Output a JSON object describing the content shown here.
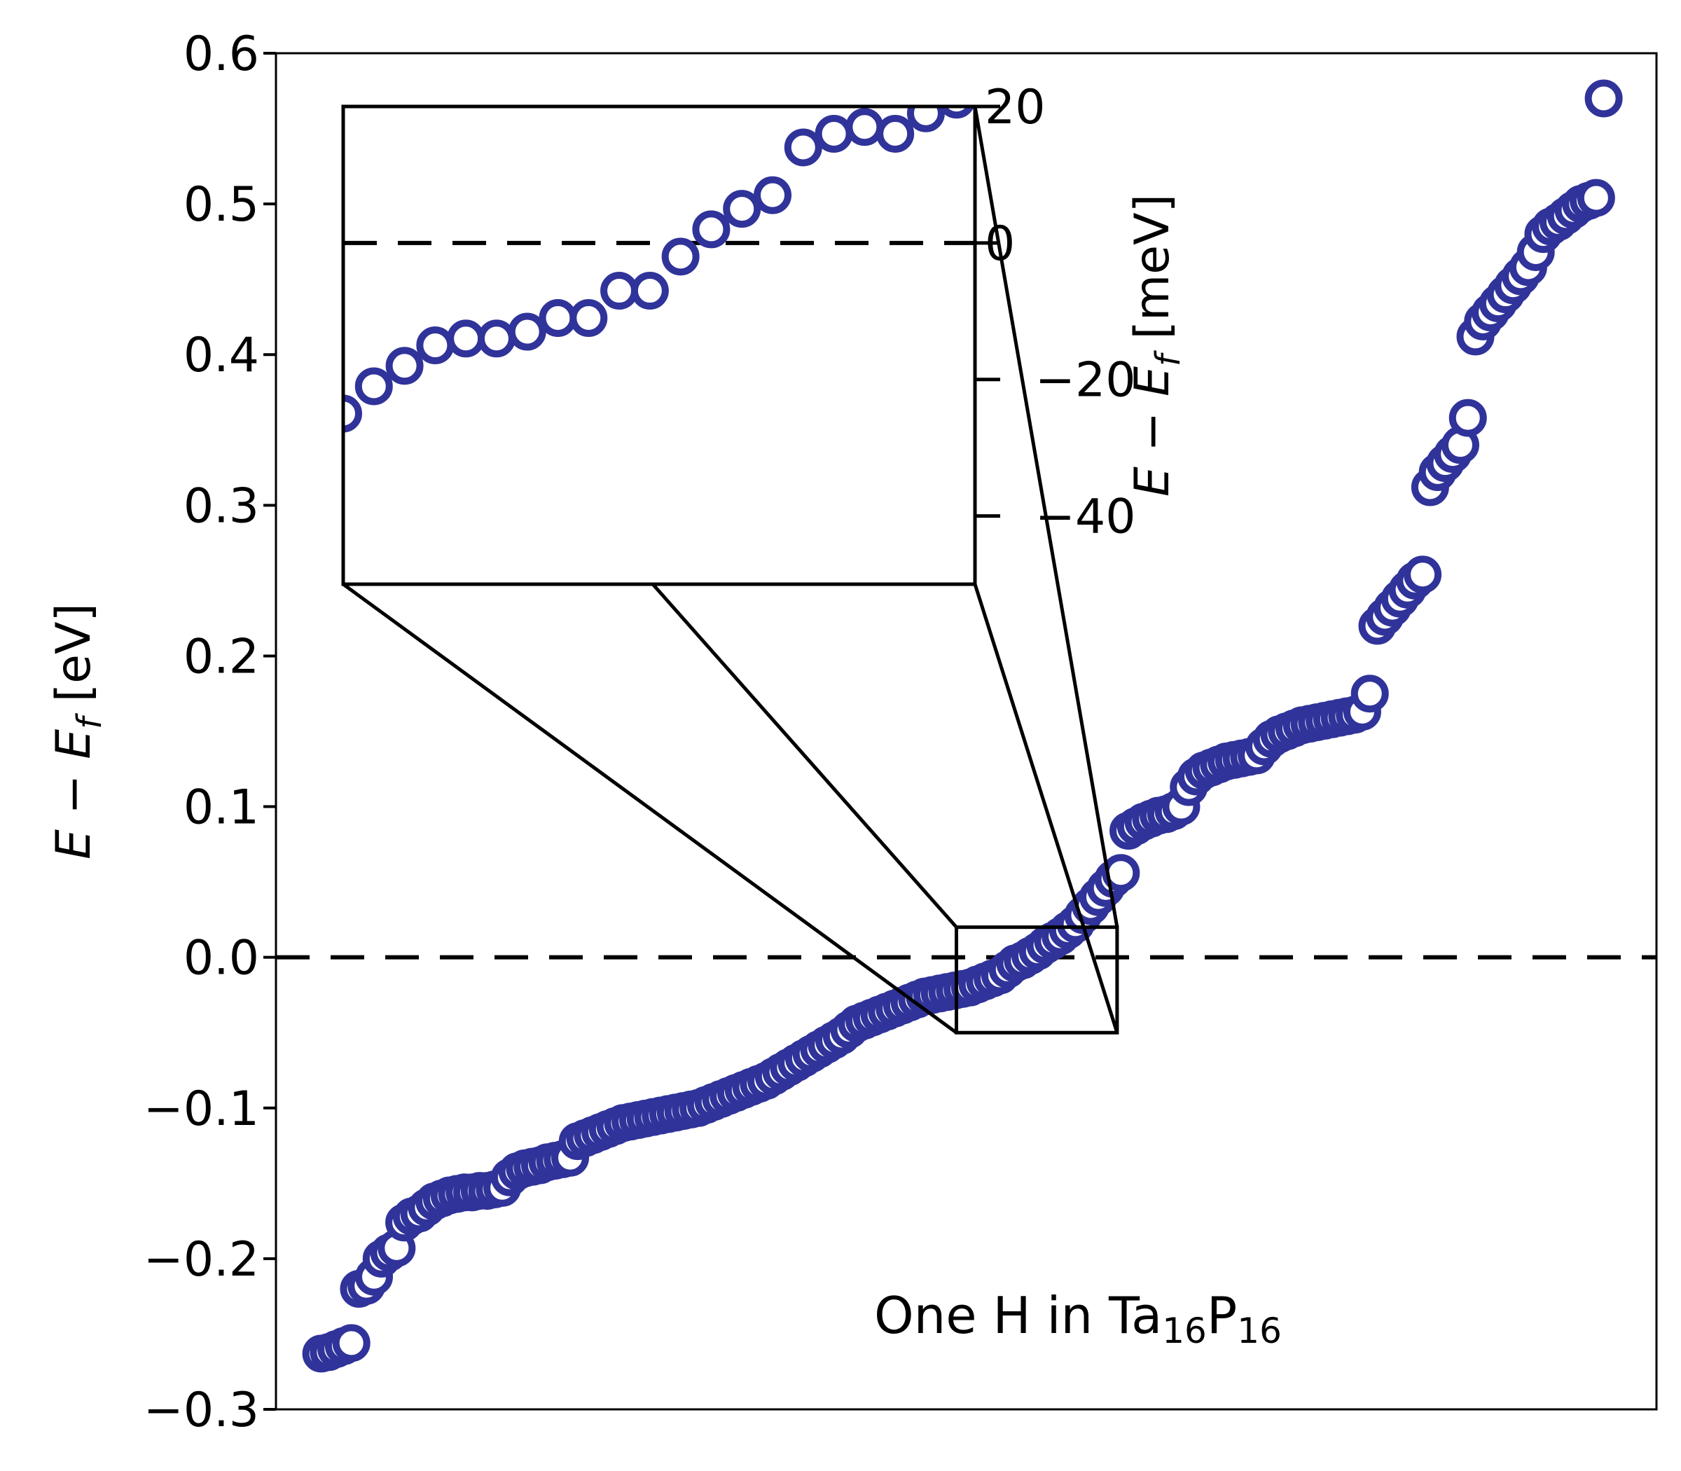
{
  "chart_data": {
    "type": "scatter",
    "title": "",
    "xlabel": "",
    "ylabel": {
      "prefix": "E − E",
      "sub": "f",
      "unit": " [eV]"
    },
    "ylim": [
      -0.3,
      0.6
    ],
    "yticks": [
      -0.3,
      -0.2,
      -0.1,
      0.0,
      0.1,
      0.2,
      0.3,
      0.4,
      0.5,
      0.6
    ],
    "ytick_labels": [
      "−0.3",
      "−0.2",
      "−0.1",
      "0.0",
      "0.1",
      "0.2",
      "0.3",
      "0.4",
      "0.5",
      "0.6"
    ],
    "reference_line": {
      "y": 0.0,
      "style": "dashed"
    },
    "grid": false,
    "marker": {
      "shape": "open-circle",
      "color": "#303399"
    },
    "annotation": {
      "main": "One H in Ta",
      "sub1": "16",
      "mid": "P",
      "sub2": "16",
      "placement": "bottom-right"
    },
    "series": [
      {
        "y": [
          -0.263,
          -0.262,
          -0.26,
          -0.258,
          -0.256,
          -0.22,
          -0.218,
          -0.212,
          -0.2,
          -0.196,
          -0.193,
          -0.176,
          -0.172,
          -0.17,
          -0.166,
          -0.162,
          -0.16,
          -0.158,
          -0.157,
          -0.156,
          -0.156,
          -0.155,
          -0.155,
          -0.154,
          -0.153,
          -0.146,
          -0.142,
          -0.14,
          -0.139,
          -0.138,
          -0.136,
          -0.135,
          -0.134,
          -0.133,
          -0.122,
          -0.12,
          -0.118,
          -0.116,
          -0.114,
          -0.112,
          -0.11,
          -0.109,
          -0.108,
          -0.107,
          -0.106,
          -0.105,
          -0.104,
          -0.103,
          -0.102,
          -0.101,
          -0.1,
          -0.098,
          -0.096,
          -0.094,
          -0.092,
          -0.09,
          -0.088,
          -0.086,
          -0.084,
          -0.082,
          -0.079,
          -0.076,
          -0.073,
          -0.07,
          -0.067,
          -0.064,
          -0.061,
          -0.058,
          -0.055,
          -0.052,
          -0.048,
          -0.044,
          -0.042,
          -0.04,
          -0.038,
          -0.036,
          -0.034,
          -0.032,
          -0.03,
          -0.028,
          -0.026,
          -0.025,
          -0.024,
          -0.023,
          -0.022,
          -0.021,
          -0.02,
          -0.018,
          -0.016,
          -0.014,
          -0.012,
          -0.008,
          -0.004,
          -0.002,
          0.001,
          0.004,
          0.008,
          0.011,
          0.014,
          0.018,
          0.022,
          0.028,
          0.034,
          0.04,
          0.046,
          0.052,
          0.056,
          0.084,
          0.087,
          0.09,
          0.092,
          0.094,
          0.095,
          0.097,
          0.1,
          0.113,
          0.12,
          0.124,
          0.126,
          0.128,
          0.13,
          0.131,
          0.132,
          0.133,
          0.134,
          0.14,
          0.145,
          0.148,
          0.15,
          0.152,
          0.154,
          0.155,
          0.156,
          0.157,
          0.158,
          0.159,
          0.16,
          0.161,
          0.163,
          0.175,
          0.22,
          0.226,
          0.232,
          0.238,
          0.244,
          0.25,
          0.254,
          0.312,
          0.322,
          0.328,
          0.334,
          0.34,
          0.358,
          0.412,
          0.422,
          0.428,
          0.434,
          0.44,
          0.446,
          0.452,
          0.458,
          0.468,
          0.48,
          0.485,
          0.488,
          0.492,
          0.496,
          0.5,
          0.502,
          0.504,
          0.57
        ]
      }
    ],
    "inset": {
      "ylabel": {
        "prefix": "E − E",
        "sub": "f",
        "unit": " [meV]"
      },
      "ylim": [
        -50,
        20
      ],
      "yticks": [
        20,
        0,
        -20,
        -40
      ],
      "ytick_labels": [
        "20",
        "0",
        "−20",
        "−40"
      ],
      "reference_line": {
        "y": 0,
        "style": "dashed"
      },
      "source_region": {
        "x_index_range": [
          84.2,
          105.5
        ],
        "ylim_eV": [
          -0.05,
          0.02
        ]
      },
      "series": [
        {
          "y": [
            -25,
            -21,
            -18,
            -15,
            -14,
            -14,
            -13,
            -11,
            -11,
            -7,
            -7,
            -2,
            2,
            5,
            7,
            14,
            16,
            17,
            16,
            19,
            21,
            23
          ]
        }
      ]
    }
  }
}
